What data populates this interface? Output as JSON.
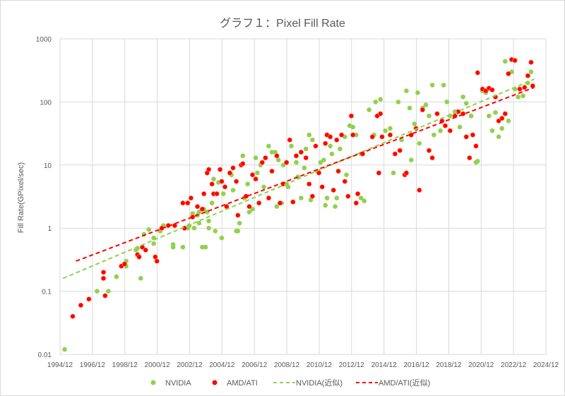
{
  "chart_data": {
    "type": "scatter",
    "title": "グラフ１：Pixel Fill Rate",
    "xlabel": "",
    "ylabel": "Fill Rate(GPixel/sec)",
    "yscale": "log",
    "ylim": [
      0.01,
      1000
    ],
    "xlim": [
      "1994/12",
      "2024/12"
    ],
    "y_ticks": [
      "0.01",
      "0.1",
      "1",
      "10",
      "100",
      "1000"
    ],
    "x_ticks": [
      "1994/12",
      "1996/12",
      "1998/12",
      "2000/12",
      "2002/12",
      "2004/12",
      "2006/12",
      "2008/12",
      "2010/12",
      "2012/12",
      "2014/12",
      "2016/12",
      "2018/12",
      "2020/12",
      "2022/12",
      "2024/12"
    ],
    "grid": true,
    "legend_position": "bottom",
    "series": [
      {
        "name": "NVIDIA",
        "kind": "scatter",
        "color": "#92D050",
        "points": [
          [
            1995.2,
            0.012
          ],
          [
            1997.2,
            0.1
          ],
          [
            1997.9,
            0.1
          ],
          [
            1998.4,
            0.17
          ],
          [
            1999.0,
            0.25
          ],
          [
            1999.0,
            0.3
          ],
          [
            1999.6,
            0.45
          ],
          [
            1999.7,
            0.48
          ],
          [
            1999.9,
            0.16
          ],
          [
            2000.1,
            0.8
          ],
          [
            2000.4,
            0.95
          ],
          [
            2000.7,
            0.7
          ],
          [
            2000.7,
            0.57
          ],
          [
            2001.1,
            0.9
          ],
          [
            2001.3,
            1.1
          ],
          [
            2001.9,
            0.55
          ],
          [
            2001.9,
            0.5
          ],
          [
            2002.5,
            0.5
          ],
          [
            2002.8,
            1.0
          ],
          [
            2002.9,
            1.1
          ],
          [
            2003.2,
            1.0
          ],
          [
            2003.1,
            1.7
          ],
          [
            2003.4,
            1.6
          ],
          [
            2003.5,
            1.8
          ],
          [
            2003.5,
            1.2
          ],
          [
            2003.7,
            0.5
          ],
          [
            2003.9,
            0.5
          ],
          [
            2003.8,
            2.0
          ],
          [
            2004.0,
            1.8
          ],
          [
            2004.1,
            1.3
          ],
          [
            2004.1,
            1.0
          ],
          [
            2004.3,
            2.5
          ],
          [
            2004.4,
            6.0
          ],
          [
            2004.5,
            0.9
          ],
          [
            2004.7,
            5.3
          ],
          [
            2004.9,
            0.7
          ],
          [
            2005.0,
            3.5
          ],
          [
            2005.2,
            2.2
          ],
          [
            2005.5,
            7
          ],
          [
            2005.6,
            4
          ],
          [
            2005.8,
            0.9
          ],
          [
            2005.9,
            0.9
          ],
          [
            2006.0,
            1.2
          ],
          [
            2006.2,
            14
          ],
          [
            2006.3,
            3
          ],
          [
            2006.5,
            5
          ],
          [
            2006.6,
            1.8
          ],
          [
            2006.8,
            2
          ],
          [
            2007.0,
            13
          ],
          [
            2007.1,
            7.5
          ],
          [
            2007.3,
            10
          ],
          [
            2007.5,
            4.5
          ],
          [
            2007.8,
            20
          ],
          [
            2008.0,
            16
          ],
          [
            2008.2,
            16
          ],
          [
            2008.3,
            2.2
          ],
          [
            2008.4,
            12
          ],
          [
            2008.6,
            2.5
          ],
          [
            2008.7,
            10
          ],
          [
            2008.9,
            5
          ],
          [
            2009.0,
            4.5
          ],
          [
            2009.2,
            20
          ],
          [
            2009.5,
            11
          ],
          [
            2009.6,
            6.5
          ],
          [
            2009.8,
            3
          ],
          [
            2010.0,
            9
          ],
          [
            2010.1,
            18
          ],
          [
            2010.3,
            30
          ],
          [
            2010.4,
            2.8
          ],
          [
            2010.5,
            25
          ],
          [
            2010.8,
            8
          ],
          [
            2011.0,
            11
          ],
          [
            2011.2,
            12
          ],
          [
            2011.3,
            2.3
          ],
          [
            2011.4,
            3
          ],
          [
            2011.6,
            20
          ],
          [
            2011.7,
            15
          ],
          [
            2011.9,
            2.2
          ],
          [
            2012.0,
            3
          ],
          [
            2012.2,
            18
          ],
          [
            2012.5,
            28
          ],
          [
            2012.6,
            7
          ],
          [
            2012.8,
            42
          ],
          [
            2013.0,
            40
          ],
          [
            2013.2,
            30
          ],
          [
            2013.5,
            15
          ],
          [
            2013.5,
            3
          ],
          [
            2013.7,
            2.7
          ],
          [
            2014.0,
            75
          ],
          [
            2014.3,
            30
          ],
          [
            2014.4,
            100
          ],
          [
            2014.7,
            110
          ],
          [
            2015.0,
            35
          ],
          [
            2015.3,
            38
          ],
          [
            2015.5,
            7.5
          ],
          [
            2015.8,
            100
          ],
          [
            2016.0,
            25
          ],
          [
            2016.3,
            150
          ],
          [
            2016.5,
            80
          ],
          [
            2016.6,
            12
          ],
          [
            2016.8,
            45
          ],
          [
            2017.0,
            140
          ],
          [
            2017.1,
            22
          ],
          [
            2017.3,
            80
          ],
          [
            2017.5,
            90
          ],
          [
            2017.7,
            60
          ],
          [
            2017.9,
            185
          ],
          [
            2018.0,
            30
          ],
          [
            2018.4,
            35
          ],
          [
            2018.6,
            185
          ],
          [
            2018.8,
            100
          ],
          [
            2019.0,
            60
          ],
          [
            2019.3,
            70
          ],
          [
            2019.6,
            40
          ],
          [
            2019.8,
            120
          ],
          [
            2020.0,
            95
          ],
          [
            2020.3,
            60
          ],
          [
            2020.6,
            11
          ],
          [
            2020.7,
            11.5
          ],
          [
            2021.0,
            150
          ],
          [
            2021.2,
            140
          ],
          [
            2021.4,
            60
          ],
          [
            2021.6,
            35
          ],
          [
            2021.8,
            68
          ],
          [
            2022.0,
            28
          ],
          [
            2022.2,
            38
          ],
          [
            2022.4,
            440
          ],
          [
            2022.6,
            50
          ],
          [
            2022.8,
            300
          ],
          [
            2023.0,
            160
          ],
          [
            2023.2,
            120
          ],
          [
            2023.5,
            125
          ],
          [
            2023.8,
            200
          ],
          [
            2024.0,
            300
          ],
          [
            2024.1,
            180
          ]
        ]
      },
      {
        "name": "AMD/ATI",
        "kind": "scatter",
        "color": "#FF0000",
        "points": [
          [
            1995.7,
            0.04
          ],
          [
            1996.2,
            0.06
          ],
          [
            1996.7,
            0.075
          ],
          [
            1997.6,
            0.16
          ],
          [
            1997.7,
            0.085
          ],
          [
            1997.6,
            0.2
          ],
          [
            1998.7,
            0.25
          ],
          [
            1998.9,
            0.27
          ],
          [
            1999.7,
            0.38
          ],
          [
            1999.8,
            0.35
          ],
          [
            2000.0,
            0.5
          ],
          [
            2000.2,
            0.45
          ],
          [
            2000.8,
            0.35
          ],
          [
            2000.9,
            0.3
          ],
          [
            2001.2,
            1.0
          ],
          [
            2001.6,
            1.1
          ],
          [
            2002.0,
            1.1
          ],
          [
            2002.5,
            2.5
          ],
          [
            2002.6,
            1.0
          ],
          [
            2002.8,
            2.5
          ],
          [
            2003.0,
            3.0
          ],
          [
            2003.1,
            1.5
          ],
          [
            2003.4,
            2.2
          ],
          [
            2003.7,
            2.0
          ],
          [
            2003.8,
            3.5
          ],
          [
            2004.0,
            7.5
          ],
          [
            2004.1,
            8.5
          ],
          [
            2004.3,
            5
          ],
          [
            2004.4,
            3.5
          ],
          [
            2004.6,
            3.5
          ],
          [
            2004.8,
            8.5
          ],
          [
            2004.9,
            5.5
          ],
          [
            2005.1,
            4.5
          ],
          [
            2005.2,
            2.2
          ],
          [
            2005.4,
            7.5
          ],
          [
            2005.6,
            9
          ],
          [
            2005.8,
            5.5
          ],
          [
            2005.9,
            1.6
          ],
          [
            2006.1,
            10
          ],
          [
            2006.2,
            10.5
          ],
          [
            2006.4,
            3.2
          ],
          [
            2006.6,
            2.2
          ],
          [
            2006.8,
            7
          ],
          [
            2007.0,
            6
          ],
          [
            2007.2,
            2.5
          ],
          [
            2007.4,
            11
          ],
          [
            2007.6,
            13
          ],
          [
            2007.8,
            3
          ],
          [
            2008.0,
            8
          ],
          [
            2008.3,
            14
          ],
          [
            2008.5,
            2.5
          ],
          [
            2008.7,
            5
          ],
          [
            2008.9,
            11
          ],
          [
            2009.1,
            25
          ],
          [
            2009.3,
            2.6
          ],
          [
            2009.5,
            14
          ],
          [
            2009.8,
            16
          ],
          [
            2010.1,
            13
          ],
          [
            2010.3,
            5
          ],
          [
            2010.5,
            3.2
          ],
          [
            2010.7,
            20
          ],
          [
            2010.9,
            7.5
          ],
          [
            2011.1,
            4.5
          ],
          [
            2011.3,
            22
          ],
          [
            2011.4,
            30
          ],
          [
            2011.6,
            28
          ],
          [
            2011.8,
            4
          ],
          [
            2012.0,
            25
          ],
          [
            2012.1,
            8
          ],
          [
            2012.3,
            30
          ],
          [
            2012.5,
            5.5
          ],
          [
            2012.7,
            3.2
          ],
          [
            2012.9,
            60
          ],
          [
            2013.0,
            30
          ],
          [
            2013.2,
            2.5
          ],
          [
            2013.3,
            3.5
          ],
          [
            2013.6,
            15
          ],
          [
            2014.2,
            28
          ],
          [
            2014.5,
            60
          ],
          [
            2014.7,
            65
          ],
          [
            2014.6,
            7.5
          ],
          [
            2014.8,
            28
          ],
          [
            2015.3,
            30
          ],
          [
            2015.6,
            15
          ],
          [
            2015.9,
            17
          ],
          [
            2016.2,
            7
          ],
          [
            2016.3,
            7.5
          ],
          [
            2016.6,
            30
          ],
          [
            2016.9,
            38
          ],
          [
            2017.1,
            4
          ],
          [
            2017.3,
            75
          ],
          [
            2017.7,
            17
          ],
          [
            2017.9,
            13
          ],
          [
            2018.2,
            65
          ],
          [
            2018.5,
            50
          ],
          [
            2018.7,
            42
          ],
          [
            2019.0,
            35
          ],
          [
            2019.3,
            60
          ],
          [
            2019.5,
            70
          ],
          [
            2019.8,
            65
          ],
          [
            2020.0,
            28
          ],
          [
            2020.2,
            13
          ],
          [
            2020.4,
            30
          ],
          [
            2020.6,
            20
          ],
          [
            2020.7,
            290
          ],
          [
            2021.0,
            160
          ],
          [
            2021.2,
            150
          ],
          [
            2021.4,
            165
          ],
          [
            2021.6,
            155
          ],
          [
            2021.8,
            120
          ],
          [
            2022.0,
            50
          ],
          [
            2022.2,
            55
          ],
          [
            2022.4,
            65
          ],
          [
            2022.6,
            280
          ],
          [
            2022.8,
            470
          ],
          [
            2023.0,
            455
          ],
          [
            2023.3,
            160
          ],
          [
            2023.6,
            170
          ],
          [
            2023.8,
            260
          ],
          [
            2024.0,
            425
          ],
          [
            2024.1,
            180
          ]
        ]
      },
      {
        "name": "NVIDIA(近似)",
        "kind": "trendline",
        "color": "#92D050",
        "points": [
          [
            1995.1,
            0.16
          ],
          [
            2024.2,
            230
          ]
        ]
      },
      {
        "name": "AMD/ATI(近似)",
        "kind": "trendline",
        "color": "#FF0000",
        "points": [
          [
            1995.9,
            0.3
          ],
          [
            2024.2,
            170
          ]
        ]
      }
    ]
  }
}
